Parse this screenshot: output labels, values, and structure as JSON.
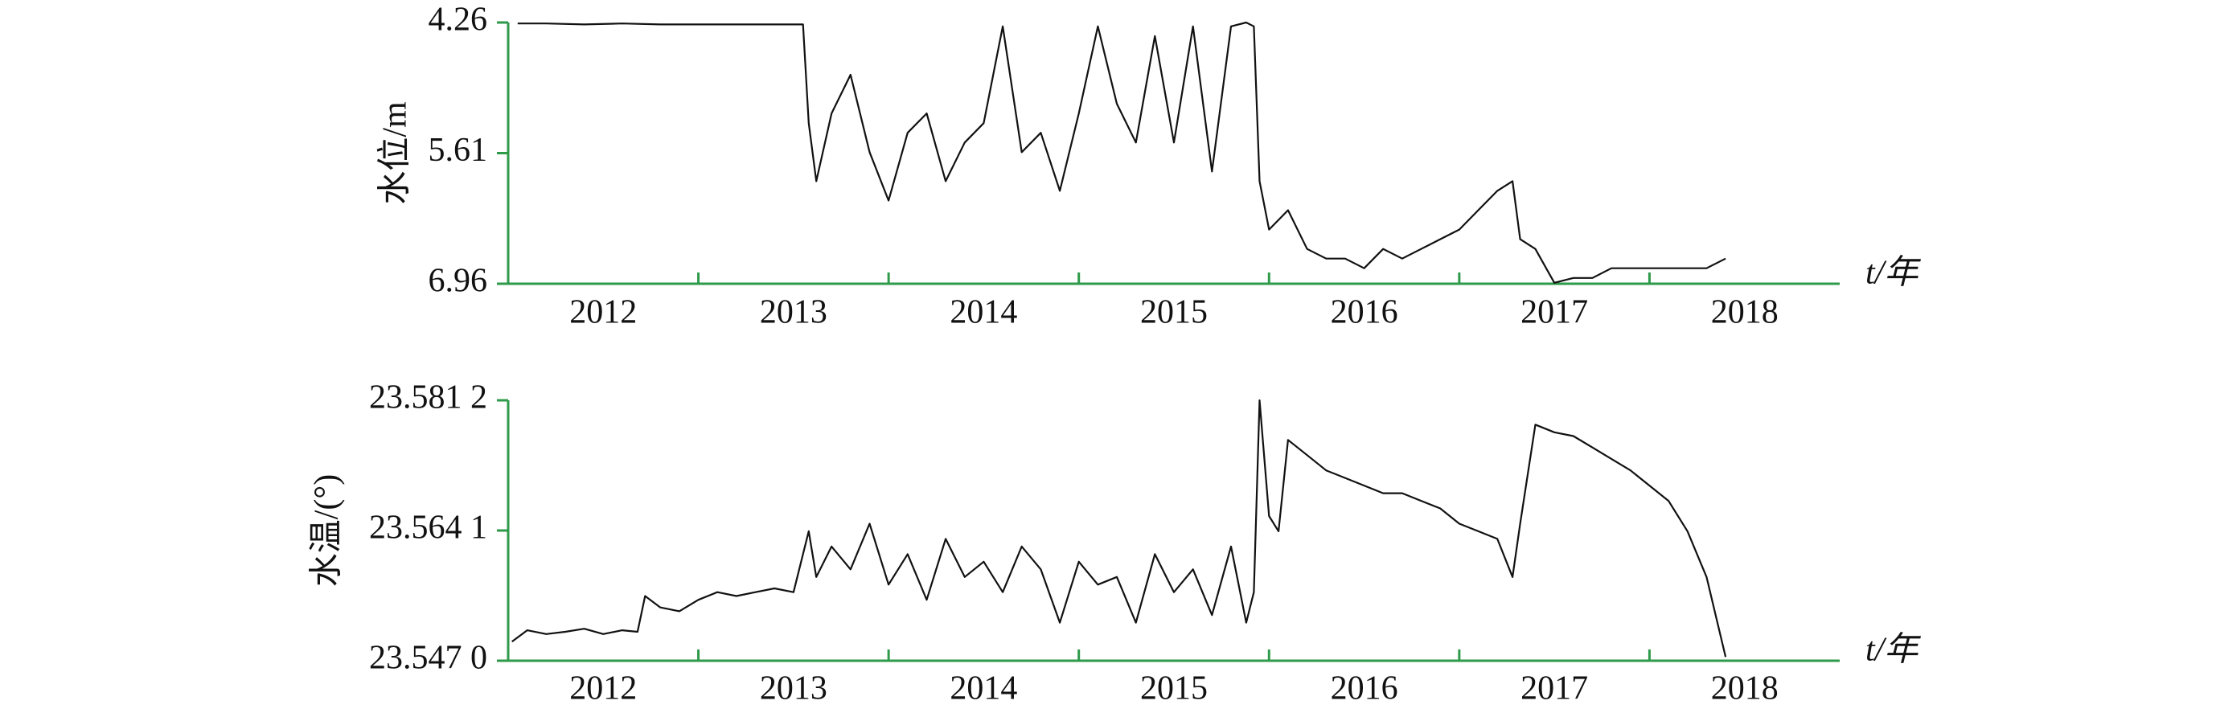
{
  "chart_data": [
    {
      "type": "line",
      "y_label": "水位/m",
      "x_label": "t/年",
      "ylim": [
        6.96,
        4.26
      ],
      "yticks": [
        4.26,
        5.61,
        6.96
      ],
      "xlim": [
        2011.5,
        2018.5
      ],
      "xticks": [
        2012,
        2013,
        2014,
        2015,
        2016,
        2017,
        2018
      ],
      "x_minor_ticks": [
        2012.5,
        2013.5,
        2014.5,
        2015.5,
        2016.5,
        2017.5
      ],
      "axis_color": "#2e9a4a",
      "series": [
        {
          "color": "#111111",
          "x": [
            2011.55,
            2011.7,
            2011.9,
            2012.1,
            2012.3,
            2012.5,
            2012.7,
            2012.9,
            2013.05,
            2013.08,
            2013.12,
            2013.2,
            2013.3,
            2013.4,
            2013.5,
            2013.6,
            2013.7,
            2013.8,
            2013.9,
            2014.0,
            2014.1,
            2014.2,
            2014.3,
            2014.4,
            2014.5,
            2014.6,
            2014.7,
            2014.8,
            2014.9,
            2015.0,
            2015.1,
            2015.2,
            2015.3,
            2015.38,
            2015.42,
            2015.45,
            2015.5,
            2015.6,
            2015.7,
            2015.8,
            2015.9,
            2016.0,
            2016.1,
            2016.2,
            2016.3,
            2016.4,
            2016.5,
            2016.6,
            2016.7,
            2016.78,
            2016.82,
            2016.9,
            2017.0,
            2017.1,
            2017.2,
            2017.3,
            2017.4,
            2017.5,
            2017.6,
            2017.7,
            2017.8,
            2017.9
          ],
          "values": [
            4.27,
            4.27,
            4.28,
            4.27,
            4.28,
            4.28,
            4.28,
            4.28,
            4.28,
            5.3,
            5.9,
            5.2,
            4.8,
            5.6,
            6.1,
            5.4,
            5.2,
            5.9,
            5.5,
            5.3,
            4.3,
            5.6,
            5.4,
            6.0,
            5.2,
            4.3,
            5.1,
            5.5,
            4.4,
            5.5,
            4.3,
            5.8,
            4.3,
            4.26,
            4.3,
            5.9,
            6.4,
            6.2,
            6.6,
            6.7,
            6.7,
            6.8,
            6.6,
            6.7,
            6.6,
            6.5,
            6.4,
            6.2,
            6.0,
            5.9,
            6.5,
            6.6,
            6.95,
            6.9,
            6.9,
            6.8,
            6.8,
            6.8,
            6.8,
            6.8,
            6.8,
            6.7
          ]
        }
      ]
    },
    {
      "type": "line",
      "y_label": "水温/(°)",
      "x_label": "t/年",
      "ylim": [
        23.547,
        23.5812
      ],
      "yticks": [
        {
          "value": 23.547,
          "label": "23.547 0"
        },
        {
          "value": 23.5641,
          "label": "23.564 1"
        },
        {
          "value": 23.5812,
          "label": "23.581 2"
        }
      ],
      "xlim": [
        2011.5,
        2018.5
      ],
      "xticks": [
        2012,
        2013,
        2014,
        2015,
        2016,
        2017,
        2018
      ],
      "x_minor_ticks": [
        2012.5,
        2013.5,
        2014.5,
        2015.5,
        2016.5,
        2017.5
      ],
      "axis_color": "#2e9a4a",
      "series": [
        {
          "color": "#111111",
          "x": [
            2011.52,
            2011.6,
            2011.7,
            2011.8,
            2011.9,
            2012.0,
            2012.1,
            2012.18,
            2012.22,
            2012.3,
            2012.4,
            2012.5,
            2012.6,
            2012.7,
            2012.8,
            2012.9,
            2013.0,
            2013.08,
            2013.12,
            2013.2,
            2013.3,
            2013.4,
            2013.5,
            2013.6,
            2013.7,
            2013.8,
            2013.9,
            2014.0,
            2014.1,
            2014.2,
            2014.3,
            2014.4,
            2014.5,
            2014.6,
            2014.7,
            2014.8,
            2014.9,
            2015.0,
            2015.1,
            2015.2,
            2015.3,
            2015.38,
            2015.42,
            2015.45,
            2015.5,
            2015.55,
            2015.6,
            2015.7,
            2015.8,
            2015.9,
            2016.0,
            2016.1,
            2016.2,
            2016.3,
            2016.4,
            2016.5,
            2016.6,
            2016.7,
            2016.78,
            2016.82,
            2016.9,
            2017.0,
            2017.1,
            2017.2,
            2017.3,
            2017.4,
            2017.5,
            2017.6,
            2017.7,
            2017.8,
            2017.9
          ],
          "values": [
            23.5495,
            23.551,
            23.5505,
            23.5508,
            23.5512,
            23.5505,
            23.551,
            23.5508,
            23.5555,
            23.554,
            23.5535,
            23.555,
            23.556,
            23.5555,
            23.556,
            23.5565,
            23.556,
            23.564,
            23.558,
            23.562,
            23.559,
            23.565,
            23.557,
            23.561,
            23.555,
            23.563,
            23.558,
            23.56,
            23.556,
            23.562,
            23.559,
            23.552,
            23.56,
            23.557,
            23.558,
            23.552,
            23.561,
            23.556,
            23.559,
            23.553,
            23.562,
            23.552,
            23.556,
            23.5812,
            23.566,
            23.564,
            23.576,
            23.574,
            23.572,
            23.571,
            23.57,
            23.569,
            23.569,
            23.568,
            23.567,
            23.565,
            23.564,
            23.563,
            23.558,
            23.565,
            23.578,
            23.577,
            23.5765,
            23.575,
            23.5735,
            23.572,
            23.57,
            23.568,
            23.564,
            23.558,
            23.5475
          ]
        }
      ]
    }
  ]
}
